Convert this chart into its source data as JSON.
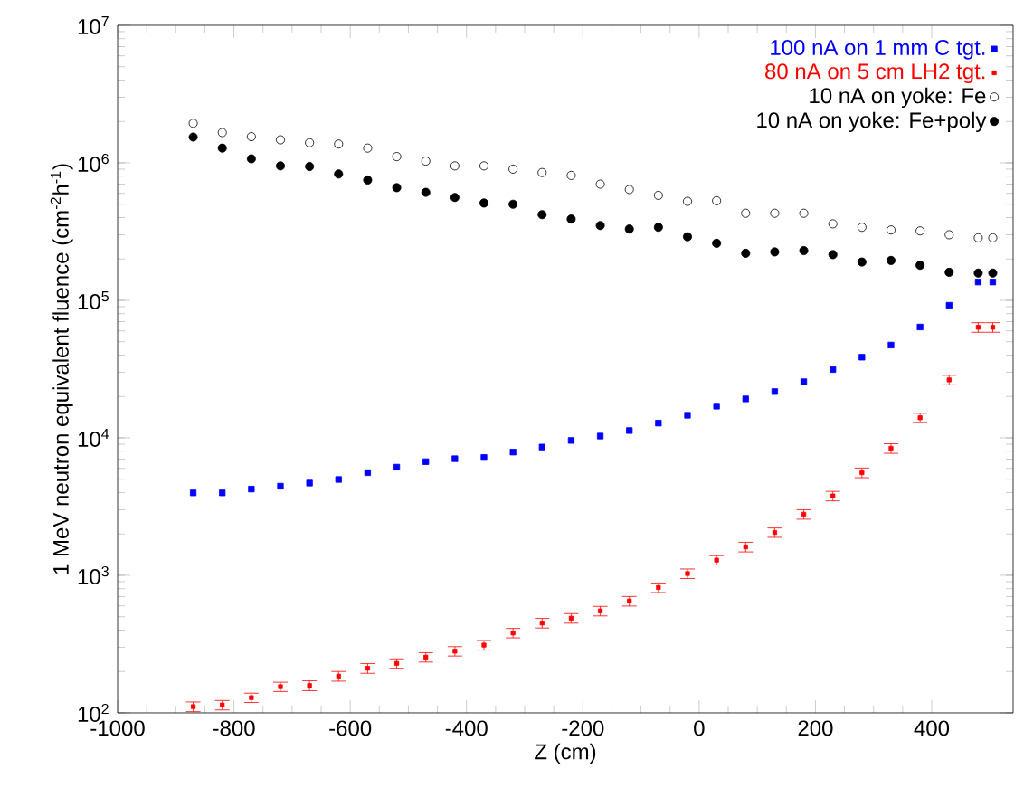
{
  "chart_data": {
    "type": "scatter",
    "xlabel": "Z (cm)",
    "ylabel": "1 MeV neutron equivalent fluence (cm$^{-2}$h$^{-1}$)",
    "x": [
      -870,
      -820,
      -770,
      -720,
      -670,
      -620,
      -570,
      -520,
      -470,
      -420,
      -370,
      -320,
      -270,
      -220,
      -170,
      -120,
      -70,
      -20,
      30,
      80,
      130,
      180,
      230,
      280,
      330,
      380,
      430,
      480,
      505
    ],
    "series": [
      {
        "name": "100 nA on 1 mm C tgt.",
        "color": "#0000ff",
        "marker": "square",
        "values": [
          3980,
          3980,
          4240,
          4450,
          4690,
          4980,
          5580,
          6120,
          6710,
          7050,
          7200,
          7880,
          8570,
          9570,
          10300,
          11300,
          12800,
          14600,
          17000,
          19200,
          21700,
          25600,
          31400,
          38600,
          47300,
          64000,
          92000,
          136000,
          136000
        ]
      },
      {
        "name": "80 nA on 5 cm LH2 tgt.",
        "color": "#ff0000",
        "marker": "square",
        "values": [
          111,
          114,
          129,
          155,
          158,
          185,
          211,
          229,
          254,
          281,
          311,
          381,
          450,
          488,
          551,
          650,
          815,
          1030,
          1290,
          1610,
          2050,
          2780,
          3780,
          5580,
          8390,
          14000,
          26400,
          63700,
          63700
        ],
        "errors": [
          9,
          9,
          10,
          12,
          13,
          15,
          17,
          18,
          20,
          22,
          25,
          30,
          36,
          39,
          44,
          52,
          65,
          82,
          100,
          130,
          160,
          220,
          300,
          450,
          670,
          1100,
          2100,
          5100,
          5100
        ]
      },
      {
        "name": "10 nA on yoke: Fe",
        "color": "#000000",
        "marker": "circle open",
        "values": [
          1940000,
          1660000,
          1550000,
          1470000,
          1400000,
          1370000,
          1280000,
          1110000,
          1030000,
          950000,
          950000,
          900000,
          850000,
          810000,
          700000,
          640000,
          580000,
          525000,
          530000,
          430000,
          430000,
          430000,
          360000,
          340000,
          325000,
          320000,
          300000,
          285000,
          285000
        ]
      },
      {
        "name": "10 nA on yoke: Fe+poly",
        "color": "#000000",
        "marker": "circle",
        "values": [
          1540000,
          1280000,
          1070000,
          950000,
          940000,
          830000,
          750000,
          660000,
          610000,
          560000,
          510000,
          500000,
          420000,
          390000,
          350000,
          330000,
          340000,
          290000,
          260000,
          220000,
          225000,
          230000,
          215000,
          190000,
          195000,
          180000,
          160000,
          158000,
          158000
        ]
      }
    ],
    "log": "y",
    "xlim": [
      -1000,
      540
    ],
    "xticks": [
      -1000,
      -800,
      -600,
      -400,
      -200,
      0,
      200,
      400
    ],
    "ylim": [
      100,
      10000000
    ],
    "yticks": [
      {
        "value": 100,
        "label": "10$^{2}$"
      },
      {
        "value": 1000,
        "label": "10$^{3}$"
      },
      {
        "value": 10000,
        "label": "10$^{4}$"
      },
      {
        "value": 100000,
        "label": "10$^{5}$"
      },
      {
        "value": 1000000,
        "label": "10$^{6}$"
      },
      {
        "value": 10000000,
        "label": "10$^{7}$"
      }
    ],
    "legend": "top right",
    "grid": false
  }
}
